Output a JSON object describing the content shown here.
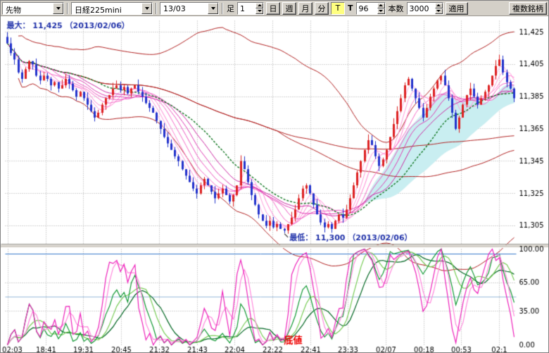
{
  "toolbar": {
    "instrument_type": {
      "value": "先物"
    },
    "symbol": {
      "value": "日経225mini"
    },
    "contract_month": {
      "value": "13/03"
    },
    "ashi_label": "足",
    "interval": {
      "value": "1"
    },
    "period_buttons": [
      {
        "label": "日"
      },
      {
        "label": "週"
      },
      {
        "label": "月"
      },
      {
        "label": "分"
      },
      {
        "label": "T",
        "active": true
      }
    ],
    "t_label": "T",
    "tick_count": {
      "value": "96"
    },
    "bars_label": "本数",
    "bars_count": {
      "value": "3000"
    },
    "apply_button": "適用",
    "multi_symbol_button": "複数銘柄"
  },
  "chart_data": {
    "type": "candlestick",
    "symbol": "日経225mini 13/03",
    "annotations": {
      "max_label": "最大： 11,425 （2013/02/06）",
      "min_label": "最低： 11,300 （2013/02/06）",
      "bottom_label": "底値",
      "annotation_color": "#2233aa",
      "bottom_label_color": "#ee0000"
    },
    "y_ticks": [
      "11,425",
      "11,405",
      "11,385",
      "11,365",
      "11,345",
      "11,325",
      "11,305"
    ],
    "y_tick_values": [
      11425,
      11405,
      11385,
      11365,
      11345,
      11325,
      11305
    ],
    "price_range": {
      "max": 11432,
      "min": 11294
    },
    "x_labels": [
      "02:03",
      "18:41",
      "19:31",
      "20:45",
      "21:32",
      "21:43",
      "22:04",
      "22:22",
      "22:41",
      "23:33",
      "02/07",
      "00:18",
      "00:53",
      "02:1"
    ],
    "closes": [
      11418,
      11412,
      11408,
      11400,
      11396,
      11402,
      11407,
      11405,
      11398,
      11395,
      11398,
      11396,
      11392,
      11394,
      11390,
      11392,
      11396,
      11393,
      11389,
      11385,
      11388,
      11384,
      11380,
      11376,
      11372,
      11375,
      11380,
      11384,
      11386,
      11390,
      11392,
      11389,
      11391,
      11387,
      11390,
      11392,
      11388,
      11385,
      11381,
      11378,
      11375,
      11370,
      11365,
      11360,
      11356,
      11352,
      11348,
      11345,
      11340,
      11336,
      11332,
      11328,
      11325,
      11330,
      11334,
      11330,
      11326,
      11322,
      11325,
      11328,
      11324,
      11320,
      11324,
      11330,
      11345,
      11340,
      11332,
      11324,
      11318,
      11312,
      11308,
      11305,
      11308,
      11304,
      11306,
      11303,
      11302,
      11306,
      11310,
      11315,
      11322,
      11328,
      11330,
      11325,
      11318,
      11312,
      11307,
      11304,
      11306,
      11303,
      11308,
      11312,
      11310,
      11315,
      11322,
      11330,
      11338,
      11345,
      11352,
      11358,
      11355,
      11348,
      11342,
      11346,
      11352,
      11360,
      11368,
      11376,
      11384,
      11392,
      11396,
      11390,
      11384,
      11378,
      11372,
      11378,
      11385,
      11390,
      11395,
      11398,
      11392,
      11384,
      11375,
      11365,
      11372,
      11380,
      11386,
      11390,
      11385,
      11380,
      11384,
      11388,
      11392,
      11398,
      11404,
      11408,
      11400,
      11394,
      11390,
      11384
    ],
    "candle_colors": {
      "up": "#dd2222",
      "down": "#2233cc"
    },
    "overlays": {
      "ma_ribbon_periods": [
        3,
        5,
        7,
        10,
        13,
        16,
        20
      ],
      "ma_ribbon_colors": [
        "#ffb3e6",
        "#ff9ddd",
        "#ff85d4",
        "#f76cc9",
        "#ee55c0",
        "#e03db4",
        "#cc29a3"
      ],
      "ma_green": {
        "period": 26,
        "color": "#117722"
      },
      "bollinger": {
        "period": 60,
        "mult": 2,
        "color": "#b22222"
      },
      "ma_red_periods": [
        75,
        200
      ],
      "ma_red_color": "#b22222",
      "cloud": {
        "fast": 12,
        "slow": 40,
        "color": "#c9eef1"
      }
    },
    "lower_panel": {
      "type": "stochastics",
      "y_ticks": [
        "100.00",
        "65.00",
        "35.00",
        "0.00"
      ],
      "y_tick_values": [
        100,
        65,
        35,
        0
      ],
      "guide_levels": [
        95,
        50
      ],
      "guide_colors": [
        "#3377cc",
        "#99bbdd"
      ],
      "dotted_levels": [
        65,
        35
      ],
      "series": [
        {
          "period": 26,
          "smooth": 9,
          "color": "#006622"
        },
        {
          "period": 26,
          "smooth": 5,
          "color": "#77cc55"
        },
        {
          "period": 26,
          "smooth": 1,
          "color": "#119933"
        },
        {
          "period": 9,
          "smooth": 3,
          "color": "#ff88dd"
        },
        {
          "period": 9,
          "smooth": 1,
          "color": "#ee22bb"
        }
      ]
    }
  }
}
